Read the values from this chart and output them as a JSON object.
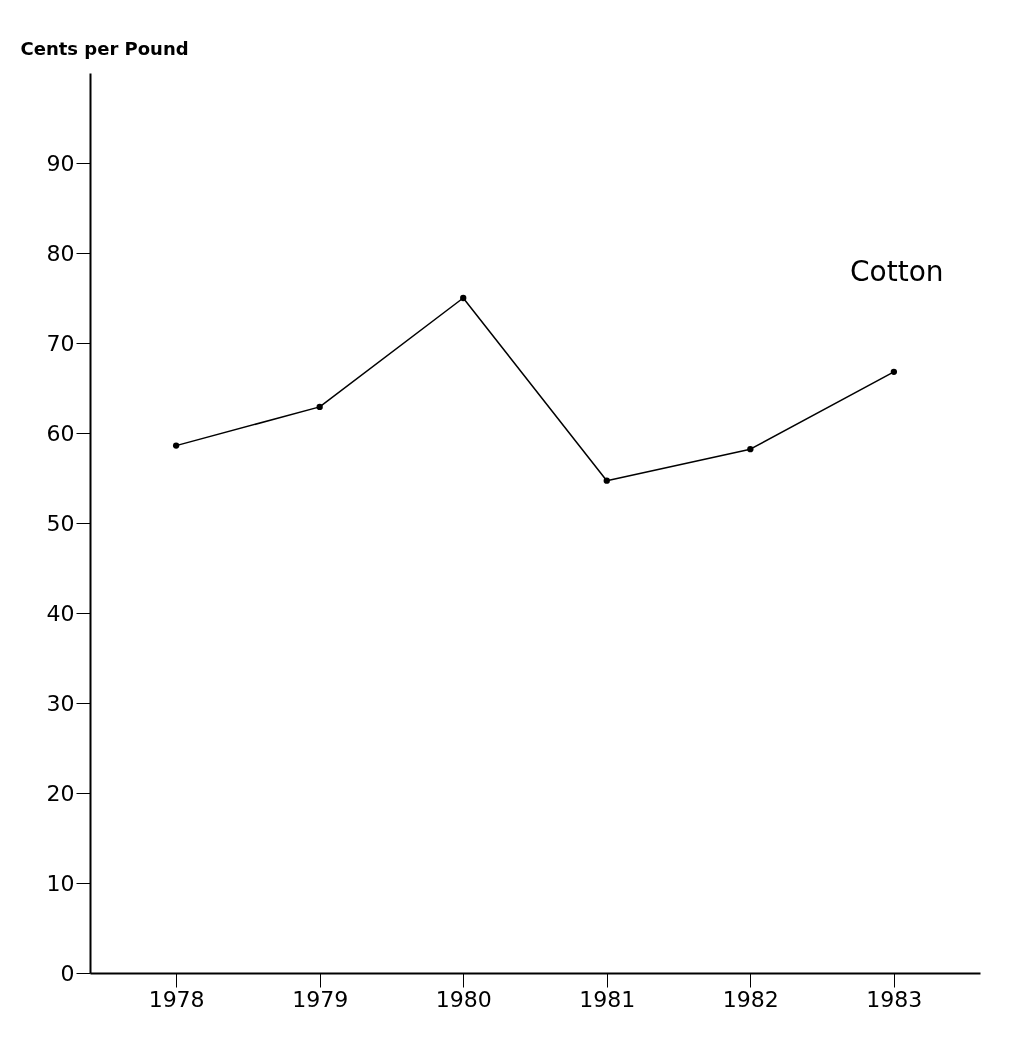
{
  "chart_data": {
    "type": "line",
    "ylabel": "Cents per Pound",
    "categories": [
      "1978",
      "1979",
      "1980",
      "1981",
      "1982",
      "1983"
    ],
    "series": [
      {
        "color": "#000000",
        "values": [
          58.6,
          62.9,
          75.0,
          54.7,
          58.2,
          66.8
        ]
      }
    ],
    "ylim": [
      0,
      100
    ],
    "yticks": [
      0,
      10,
      20,
      30,
      40,
      50,
      60,
      70,
      80,
      90
    ],
    "grid": false,
    "marker": "circle",
    "line_style": "solid",
    "annotations": [
      "Cotton"
    ]
  }
}
